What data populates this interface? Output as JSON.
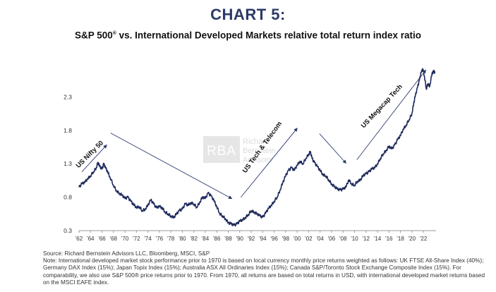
{
  "header": {
    "chart_label": "CHART 5:",
    "title_part1": "S&P 500",
    "title_reg": "®",
    "title_part2": " vs. International Developed Markets relative total return index ratio"
  },
  "watermark": {
    "mark": "RBA",
    "line1": "Richard",
    "line2": "Bernstein",
    "line3": "Advisors"
  },
  "footer": {
    "source": "Source: Richard Bernstein Advisors LLC, Bloomberg, MSCI, S&P",
    "note": "Note: International developed market stock performance prior to 1970 is based on local currency monthly price returns weighted as follows: UK FTSE All-Share Index (40%); Germany DAX Index (15%); Japan Topix Index (15%); Australia ASX All Ordinaries Index (15%); Canada S&P/Toronto Stock Exchange Composite Index (15%). For comparability, we also use S&P 500® price returns prior to 1970. From 1970, all returns are based on total returns in USD, with international developed market returns based on the MSCI EAFE index."
  },
  "colors": {
    "line": "#1f2a5c",
    "arrow": "#2b3a6e",
    "axis": "#999999"
  },
  "chart_data": {
    "type": "line",
    "title": "S&P 500® vs. International Developed Markets relative total return index ratio",
    "xlabel": "",
    "ylabel": "",
    "xlim": [
      1962,
      2024.2
    ],
    "ylim": [
      0.3,
      2.8
    ],
    "yticks": [
      0.3,
      0.8,
      1.3,
      1.8,
      2.3
    ],
    "ytick_labels": [
      "0.3",
      "0.8",
      "1.3",
      "1.8",
      "2.3"
    ],
    "xticks": [
      1962,
      1964,
      1966,
      1968,
      1970,
      1972,
      1974,
      1976,
      1978,
      1980,
      1982,
      1984,
      1986,
      1988,
      1990,
      1992,
      1994,
      1996,
      1998,
      2000,
      2002,
      2004,
      2006,
      2008,
      2010,
      2012,
      2014,
      2016,
      2018,
      2020,
      2022
    ],
    "xtick_labels": [
      "'62",
      "'64",
      "'66",
      "'68",
      "'70",
      "'72",
      "'74",
      "'76",
      "'78",
      "'80",
      "'82",
      "'84",
      "'86",
      "'88",
      "'90",
      "'92",
      "'94",
      "'96",
      "'98",
      "'00",
      "'02",
      "'04",
      "'06",
      "'08",
      "'10",
      "'12",
      "'14",
      "'16",
      "'18",
      "'20",
      "'22"
    ],
    "grid": false,
    "legend": "none",
    "series": [
      {
        "values": [
          [
            1962.0,
            0.95
          ],
          [
            1962.5,
            1.0
          ],
          [
            1963.0,
            1.02
          ],
          [
            1963.5,
            1.08
          ],
          [
            1964.0,
            1.12
          ],
          [
            1964.5,
            1.18
          ],
          [
            1965.0,
            1.24
          ],
          [
            1965.3,
            1.32
          ],
          [
            1965.6,
            1.26
          ],
          [
            1966.0,
            1.22
          ],
          [
            1966.3,
            1.3
          ],
          [
            1966.6,
            1.24
          ],
          [
            1967.0,
            1.18
          ],
          [
            1967.4,
            1.1
          ],
          [
            1968.0,
            0.98
          ],
          [
            1968.5,
            0.9
          ],
          [
            1969.0,
            0.86
          ],
          [
            1969.5,
            0.83
          ],
          [
            1970.0,
            0.78
          ],
          [
            1970.5,
            0.8
          ],
          [
            1971.0,
            0.74
          ],
          [
            1971.5,
            0.69
          ],
          [
            1972.0,
            0.65
          ],
          [
            1972.5,
            0.66
          ],
          [
            1973.0,
            0.6
          ],
          [
            1973.5,
            0.62
          ],
          [
            1974.0,
            0.68
          ],
          [
            1974.5,
            0.76
          ],
          [
            1975.0,
            0.7
          ],
          [
            1975.5,
            0.64
          ],
          [
            1976.0,
            0.66
          ],
          [
            1976.5,
            0.64
          ],
          [
            1977.0,
            0.58
          ],
          [
            1977.5,
            0.55
          ],
          [
            1978.0,
            0.52
          ],
          [
            1978.5,
            0.5
          ],
          [
            1979.0,
            0.55
          ],
          [
            1979.5,
            0.6
          ],
          [
            1980.0,
            0.62
          ],
          [
            1980.5,
            0.7
          ],
          [
            1981.0,
            0.68
          ],
          [
            1981.5,
            0.72
          ],
          [
            1982.0,
            0.7
          ],
          [
            1982.5,
            0.65
          ],
          [
            1983.0,
            0.72
          ],
          [
            1983.5,
            0.8
          ],
          [
            1984.0,
            0.78
          ],
          [
            1984.5,
            0.86
          ],
          [
            1985.0,
            0.82
          ],
          [
            1985.5,
            0.75
          ],
          [
            1986.0,
            0.66
          ],
          [
            1986.5,
            0.56
          ],
          [
            1987.0,
            0.52
          ],
          [
            1987.5,
            0.48
          ],
          [
            1988.0,
            0.42
          ],
          [
            1988.5,
            0.4
          ],
          [
            1989.0,
            0.38
          ],
          [
            1989.5,
            0.4
          ],
          [
            1990.0,
            0.44
          ],
          [
            1990.5,
            0.46
          ],
          [
            1991.0,
            0.5
          ],
          [
            1991.5,
            0.54
          ],
          [
            1992.0,
            0.6
          ],
          [
            1992.5,
            0.58
          ],
          [
            1993.0,
            0.55
          ],
          [
            1993.5,
            0.52
          ],
          [
            1994.0,
            0.5
          ],
          [
            1994.5,
            0.56
          ],
          [
            1995.0,
            0.63
          ],
          [
            1995.5,
            0.68
          ],
          [
            1996.0,
            0.74
          ],
          [
            1996.5,
            0.8
          ],
          [
            1997.0,
            0.9
          ],
          [
            1997.5,
            1.02
          ],
          [
            1998.0,
            1.12
          ],
          [
            1998.5,
            1.2
          ],
          [
            1999.0,
            1.24
          ],
          [
            1999.5,
            1.2
          ],
          [
            2000.0,
            1.28
          ],
          [
            2000.5,
            1.34
          ],
          [
            2001.0,
            1.3
          ],
          [
            2001.5,
            1.38
          ],
          [
            2002.0,
            1.44
          ],
          [
            2002.3,
            1.48
          ],
          [
            2002.6,
            1.38
          ],
          [
            2003.0,
            1.32
          ],
          [
            2003.5,
            1.26
          ],
          [
            2004.0,
            1.2
          ],
          [
            2004.5,
            1.14
          ],
          [
            2005.0,
            1.12
          ],
          [
            2005.5,
            1.06
          ],
          [
            2006.0,
            1.0
          ],
          [
            2006.5,
            0.96
          ],
          [
            2007.0,
            0.92
          ],
          [
            2007.5,
            0.91
          ],
          [
            2008.0,
            0.92
          ],
          [
            2008.5,
            0.95
          ],
          [
            2009.0,
            1.06
          ],
          [
            2009.5,
            1.0
          ],
          [
            2010.0,
            0.98
          ],
          [
            2010.5,
            1.04
          ],
          [
            2011.0,
            1.06
          ],
          [
            2011.5,
            1.12
          ],
          [
            2012.0,
            1.15
          ],
          [
            2012.5,
            1.18
          ],
          [
            2013.0,
            1.22
          ],
          [
            2013.5,
            1.24
          ],
          [
            2014.0,
            1.3
          ],
          [
            2014.5,
            1.38
          ],
          [
            2015.0,
            1.45
          ],
          [
            2015.5,
            1.5
          ],
          [
            2016.0,
            1.56
          ],
          [
            2016.5,
            1.52
          ],
          [
            2017.0,
            1.58
          ],
          [
            2017.5,
            1.66
          ],
          [
            2018.0,
            1.72
          ],
          [
            2018.5,
            1.82
          ],
          [
            2019.0,
            1.88
          ],
          [
            2019.5,
            1.96
          ],
          [
            2020.0,
            2.05
          ],
          [
            2020.3,
            2.2
          ],
          [
            2020.6,
            2.32
          ],
          [
            2021.0,
            2.45
          ],
          [
            2021.3,
            2.55
          ],
          [
            2021.6,
            2.66
          ],
          [
            2021.9,
            2.72
          ],
          [
            2022.2,
            2.6
          ],
          [
            2022.5,
            2.42
          ],
          [
            2022.8,
            2.5
          ],
          [
            2023.1,
            2.46
          ],
          [
            2023.5,
            2.65
          ],
          [
            2023.8,
            2.68
          ],
          [
            2024.0,
            2.66
          ]
        ]
      }
    ],
    "annotations": [
      {
        "text": "US Nifty 50",
        "arrow_from": [
          1962.5,
          1.18
        ],
        "arrow_to": [
          1966.8,
          1.58
        ],
        "label_at": [
          1964.1,
          1.42
        ],
        "angle": -45
      },
      {
        "text": "US Tech & Telecom",
        "arrow_from": [
          1990.2,
          0.8
        ],
        "arrow_to": [
          2000.0,
          1.83
        ],
        "label_at": [
          1994.2,
          1.53
        ],
        "angle": -54
      },
      {
        "text": "US Megacap Tech",
        "arrow_from": [
          2010.4,
          1.36
        ],
        "arrow_to": [
          2022.4,
          2.7
        ],
        "label_at": [
          2015.0,
          2.14
        ],
        "angle": -47
      }
    ],
    "trend_arrows": [
      {
        "from": [
          1967.5,
          1.76
        ],
        "to": [
          1988.6,
          0.78
        ]
      },
      {
        "from": [
          2003.9,
          1.75
        ],
        "to": [
          2008.5,
          1.31
        ]
      }
    ]
  }
}
